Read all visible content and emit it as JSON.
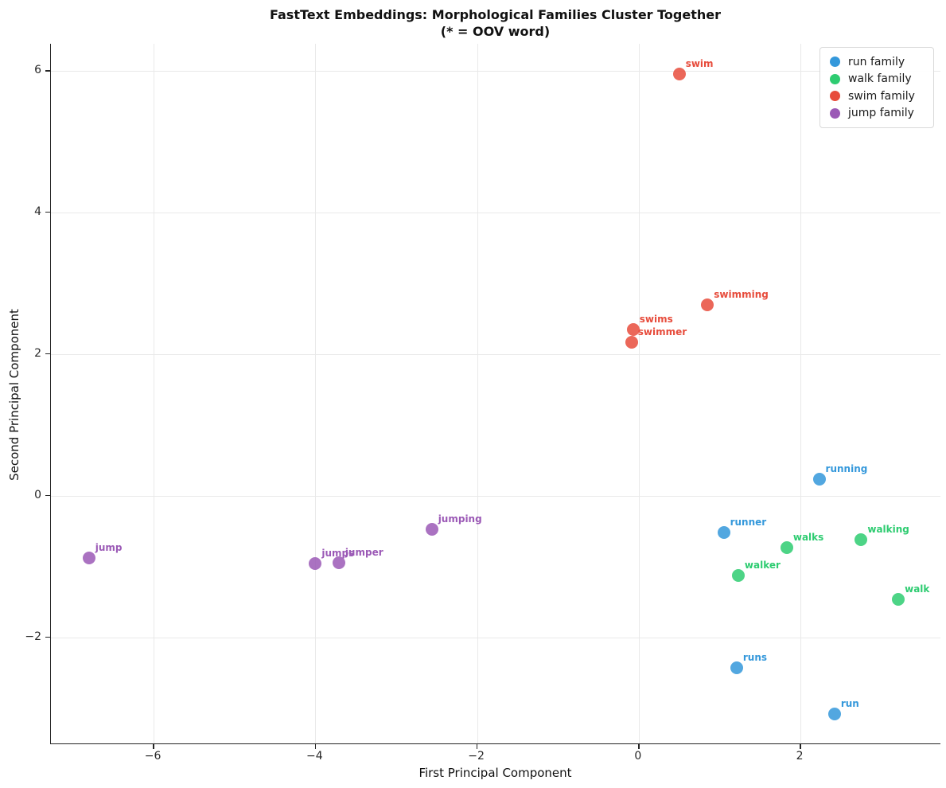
{
  "title": {
    "line1": "FastText Embeddings: Morphological Families Cluster Together",
    "line2": "(* = OOV word)"
  },
  "axes": {
    "xlabel": "First Principal Component",
    "ylabel": "Second Principal Component"
  },
  "chart_data": {
    "type": "scatter",
    "title": "FastText Embeddings: Morphological Families Cluster Together",
    "subtitle": "(* = OOV word)",
    "xlabel": "First Principal Component",
    "ylabel": "Second Principal Component",
    "xlim": [
      -7.27,
      3.74
    ],
    "ylim": [
      -3.51,
      6.38
    ],
    "x_ticks": [
      -6,
      -4,
      -2,
      0,
      2
    ],
    "y_ticks": [
      -2,
      0,
      2,
      4,
      6
    ],
    "grid": true,
    "legend_position": "upper right",
    "series": [
      {
        "name": "run family",
        "color": "#3498db",
        "points": [
          {
            "label": "running",
            "x": 2.23,
            "y": 0.23
          },
          {
            "label": "runner",
            "x": 1.05,
            "y": -0.52
          },
          {
            "label": "runs",
            "x": 1.21,
            "y": -2.43
          },
          {
            "label": "run",
            "x": 2.42,
            "y": -3.08
          }
        ]
      },
      {
        "name": "walk family",
        "color": "#2ecc71",
        "points": [
          {
            "label": "walks",
            "x": 1.83,
            "y": -0.73
          },
          {
            "label": "walking",
            "x": 2.75,
            "y": -0.62
          },
          {
            "label": "walker",
            "x": 1.23,
            "y": -1.13
          },
          {
            "label": "walk",
            "x": 3.21,
            "y": -1.47
          }
        ]
      },
      {
        "name": "swim family",
        "color": "#e74c3c",
        "points": [
          {
            "label": "swim",
            "x": 0.5,
            "y": 5.95
          },
          {
            "label": "swimming",
            "x": 0.85,
            "y": 2.69
          },
          {
            "label": "swims",
            "x": -0.07,
            "y": 2.35
          },
          {
            "label": "swimmer",
            "x": -0.09,
            "y": 2.17
          }
        ]
      },
      {
        "name": "jump family",
        "color": "#9b59b6",
        "points": [
          {
            "label": "jumping",
            "x": -2.56,
            "y": -0.48
          },
          {
            "label": "jumper",
            "x": -3.71,
            "y": -0.95
          },
          {
            "label": "jumps",
            "x": -4.0,
            "y": -0.96
          },
          {
            "label": "jump",
            "x": -6.8,
            "y": -0.88
          }
        ]
      }
    ]
  }
}
